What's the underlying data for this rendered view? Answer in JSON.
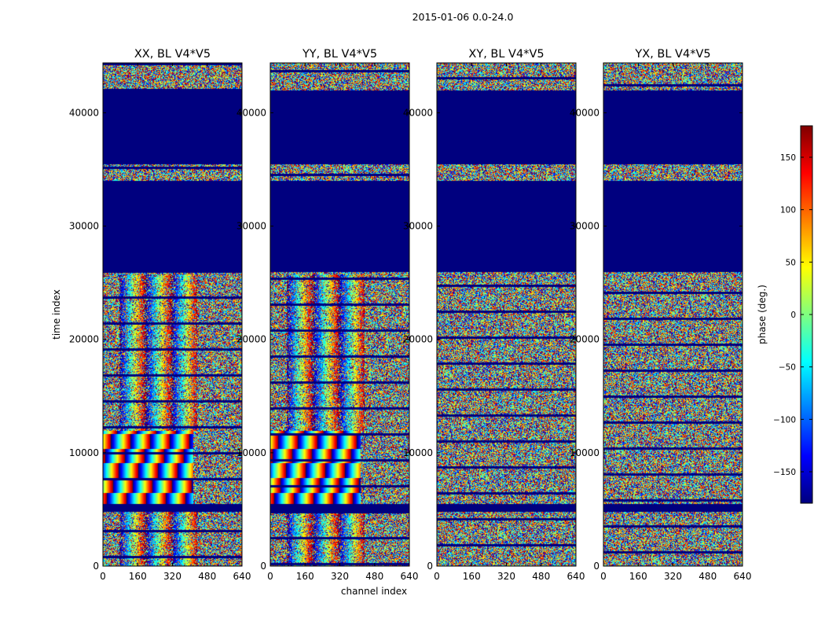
{
  "chart_data": {
    "type": "heatmap",
    "suptitle": "2015-01-06 0.0-24.0",
    "xlabel": "channel index",
    "ylabel": "time index",
    "xlim": [
      0,
      640
    ],
    "ylim": [
      0,
      44400
    ],
    "xticks": [
      0,
      160,
      320,
      480,
      640
    ],
    "yticks": [
      0,
      10000,
      20000,
      30000,
      40000
    ],
    "panels": [
      {
        "title": "XX, BL V4*V5",
        "kind": "parallel"
      },
      {
        "title": "YY, BL V4*V5",
        "kind": "parallel"
      },
      {
        "title": "XY, BL V4*V5",
        "kind": "cross"
      },
      {
        "title": "YX, BL V4*V5",
        "kind": "cross"
      }
    ],
    "flagged_time_ranges": [
      [
        4800,
        5500
      ],
      [
        26000,
        34000
      ],
      [
        35500,
        42000
      ]
    ],
    "colorbar": {
      "label": "phase (deg.)",
      "range": [
        -180,
        180
      ],
      "ticks": [
        -150,
        -100,
        -50,
        0,
        50,
        100,
        150
      ],
      "tick_labels": [
        "−150",
        "−100",
        "−50",
        "0",
        "50",
        "100",
        "150"
      ]
    },
    "colormap": {
      "name": "jet",
      "stops": [
        "#00007f",
        "#0000ff",
        "#007fff",
        "#00ffff",
        "#7fff7f",
        "#ffff00",
        "#ff7f00",
        "#ff0000",
        "#7f0000"
      ],
      "flagged_color": "#00007f"
    }
  }
}
